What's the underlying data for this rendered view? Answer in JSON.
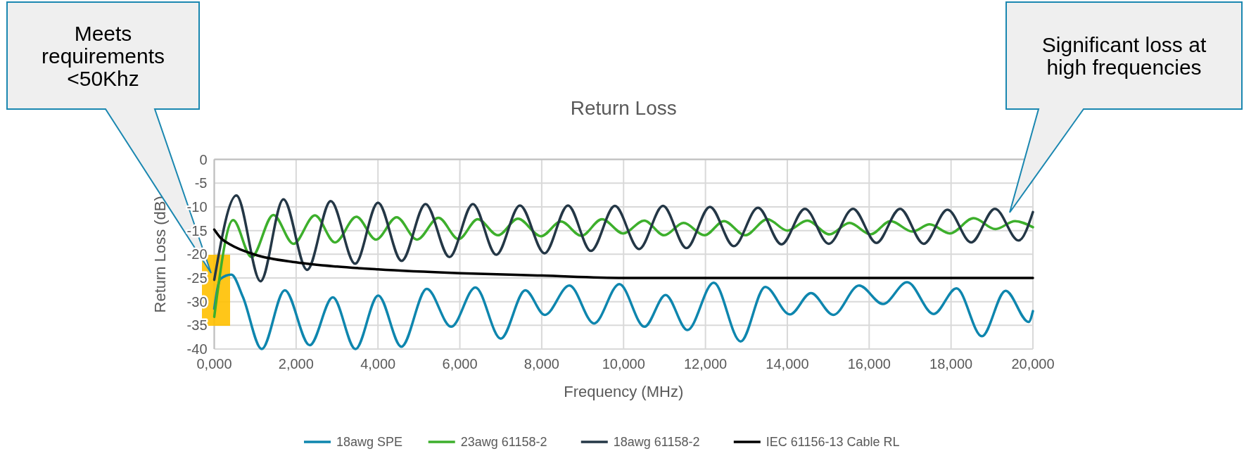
{
  "chart_data": {
    "type": "line",
    "title": "Return Loss",
    "xlabel": "Frequency (MHz)",
    "ylabel": "Return Loss (dB)",
    "xlim": [
      0,
      20000
    ],
    "ylim": [
      -40,
      0
    ],
    "xticks": [
      {
        "value": 0,
        "label": "0,000"
      },
      {
        "value": 2000,
        "label": "2,000"
      },
      {
        "value": 4000,
        "label": "4,000"
      },
      {
        "value": 6000,
        "label": "6,000"
      },
      {
        "value": 8000,
        "label": "8,000"
      },
      {
        "value": 10000,
        "label": "10,000"
      },
      {
        "value": 12000,
        "label": "12,000"
      },
      {
        "value": 14000,
        "label": "14,000"
      },
      {
        "value": 16000,
        "label": "16,000"
      },
      {
        "value": 18000,
        "label": "18,000"
      },
      {
        "value": 20000,
        "label": "20,000"
      }
    ],
    "yticks": [
      0,
      -5,
      -10,
      -15,
      -20,
      -25,
      -30,
      -35,
      -40
    ],
    "grid": true,
    "legend": "bottom",
    "marker": "none",
    "line_style": "solid",
    "annotations": [
      "Meets requirements <50Khz",
      "Significant loss at high frequencies"
    ],
    "series": [
      {
        "name": "18awg SPE",
        "color": "#0e86ae",
        "x": [
          0,
          150,
          418,
          700,
          1160,
          1723,
          2332,
          2897,
          3450,
          4006,
          4572,
          5192,
          5788,
          6380,
          7000,
          7600,
          8075,
          8676,
          9278,
          9897,
          10510,
          11026,
          11559,
          12201,
          12860,
          13461,
          14063,
          14579,
          15123,
          15754,
          16336,
          16928,
          17577,
          18133,
          18754,
          19333,
          19896,
          20000
        ],
        "values": [
          -31.5,
          -25.2,
          -24.3,
          -29,
          -40,
          -27.6,
          -39.2,
          -29.1,
          -40,
          -28.7,
          -39.5,
          -27.3,
          -35.3,
          -27,
          -37.8,
          -27.6,
          -32.8,
          -26.6,
          -34.6,
          -26.3,
          -35.3,
          -28.6,
          -36,
          -26,
          -38.4,
          -26.9,
          -32.7,
          -28.2,
          -32.8,
          -26.6,
          -30.5,
          -25.9,
          -32.6,
          -27.2,
          -37.3,
          -27.7,
          -34.3,
          -32
        ]
      },
      {
        "name": "23awg 61158-2",
        "color": "#3daf2c",
        "x": [
          0,
          461,
          910,
          1444,
          1936,
          2459,
          2950,
          3473,
          3952,
          4456,
          4954,
          5477,
          5969,
          6438,
          6930,
          7420,
          7983,
          8470,
          8968,
          9473,
          9989,
          10504,
          10991,
          11467,
          11977,
          12453,
          12968,
          13513,
          14000,
          14487,
          15032,
          15519,
          16034,
          16522,
          17055,
          17478,
          17971,
          18551,
          19084,
          19565,
          20000
        ],
        "values": [
          -33.2,
          -12.8,
          -20.6,
          -11.7,
          -17.8,
          -11.8,
          -17.5,
          -12.1,
          -16.9,
          -12.2,
          -16.9,
          -12.3,
          -16.8,
          -12.6,
          -16,
          -12.5,
          -16.2,
          -13.1,
          -16.1,
          -12.6,
          -15.6,
          -12.9,
          -16,
          -13.4,
          -16,
          -13,
          -16,
          -12.6,
          -15,
          -12.9,
          -15.8,
          -13.4,
          -15.8,
          -13,
          -15.2,
          -13.7,
          -15.6,
          -12.4,
          -14.7,
          -13,
          -14.3
        ]
      },
      {
        "name": "18awg 61158-2",
        "color": "#243746",
        "x": [
          0,
          541,
          1131,
          1690,
          2268,
          2846,
          3442,
          4000,
          4578,
          5162,
          5746,
          6318,
          6890,
          7468,
          8069,
          8642,
          9203,
          9788,
          10378,
          10963,
          11536,
          12109,
          12693,
          13284,
          13857,
          14430,
          15014,
          15605,
          16178,
          16754,
          17333,
          17913,
          18493,
          19072,
          19652,
          20000
        ],
        "values": [
          -25.4,
          -7.6,
          -25.7,
          -8.4,
          -23.3,
          -8.8,
          -22,
          -9.1,
          -21.4,
          -9.4,
          -20.6,
          -9.4,
          -20.1,
          -9.7,
          -19.8,
          -9.7,
          -19.3,
          -9.8,
          -18.9,
          -9.8,
          -18.7,
          -10,
          -18.3,
          -10.2,
          -17.9,
          -10.4,
          -17.8,
          -10.4,
          -17.6,
          -10.4,
          -17.8,
          -10.6,
          -17.5,
          -10.4,
          -17.1,
          -11.1
        ]
      },
      {
        "name": "IEC 61156-13 Cable RL",
        "color": "#000000",
        "x": [
          0,
          150,
          400,
          1000,
          2000,
          3000,
          4000,
          6000,
          8000,
          10000,
          20000
        ],
        "values": [
          -14.8,
          -16.5,
          -18,
          -20.1,
          -21.7,
          -22.6,
          -23.2,
          -24,
          -24.5,
          -25,
          -25
        ]
      }
    ]
  }
}
